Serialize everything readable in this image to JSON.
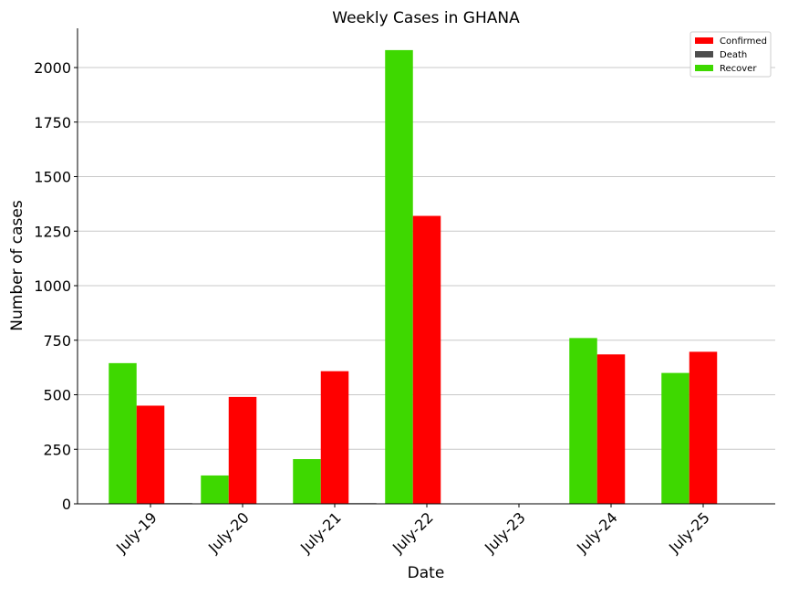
{
  "chart_data": {
    "type": "bar",
    "title": "Weekly Cases in GHANA",
    "xlabel": "Date",
    "ylabel": "Number of cases",
    "categories": [
      "July-19",
      "July-20",
      "July-21",
      "July-22",
      "July-23",
      "July-24",
      "July-25"
    ],
    "series": [
      {
        "name": "Recover",
        "color": "#3ed800",
        "values": [
          645,
          130,
          205,
          2080,
          0,
          760,
          600
        ]
      },
      {
        "name": "Confirmed",
        "color": "#ff0000",
        "values": [
          450,
          490,
          608,
          1320,
          0,
          685,
          697
        ]
      },
      {
        "name": "Death",
        "color": "#4d4d4d",
        "values": [
          3,
          2,
          3,
          2,
          0,
          0,
          0
        ]
      }
    ],
    "legend_order": [
      "Confirmed",
      "Death",
      "Recover"
    ],
    "legend_position": "top-right",
    "ylim": [
      0,
      2180
    ],
    "yticks": [
      0,
      250,
      500,
      750,
      1000,
      1250,
      1500,
      1750,
      2000
    ],
    "grid": "horizontal",
    "gridColor": "#c8c8c8"
  }
}
